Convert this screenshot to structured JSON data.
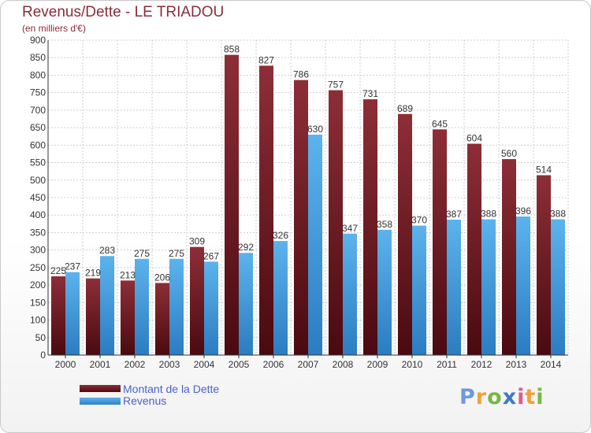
{
  "chart_data": {
    "type": "bar",
    "title": "Revenus/Dette - LE TRIADOU",
    "subtitle": "(en milliers d'€)",
    "categories": [
      "2000",
      "2001",
      "2002",
      "2003",
      "2004",
      "2005",
      "2006",
      "2007",
      "2008",
      "2009",
      "2010",
      "2011",
      "2012",
      "2013",
      "2014"
    ],
    "series": [
      {
        "name": "Montant de la Dette",
        "values": [
          225,
          219,
          213,
          206,
          309,
          858,
          827,
          786,
          757,
          731,
          689,
          645,
          604,
          560,
          514
        ],
        "color": "#7a1c24"
      },
      {
        "name": "Revenus",
        "values": [
          237,
          283,
          275,
          275,
          267,
          292,
          326,
          630,
          347,
          358,
          370,
          387,
          388,
          396,
          388
        ],
        "color": "#4aa3e3"
      }
    ],
    "ylim": [
      0,
      900
    ],
    "yticks": [
      0,
      50,
      100,
      150,
      200,
      250,
      300,
      350,
      400,
      450,
      500,
      550,
      600,
      650,
      700,
      750,
      800,
      850,
      900
    ],
    "grid": true,
    "legend_position": "bottom-left"
  },
  "logo": {
    "text": "Proxiti",
    "letters": [
      "P",
      "r",
      "o",
      "x",
      "i",
      "t",
      "i"
    ]
  }
}
